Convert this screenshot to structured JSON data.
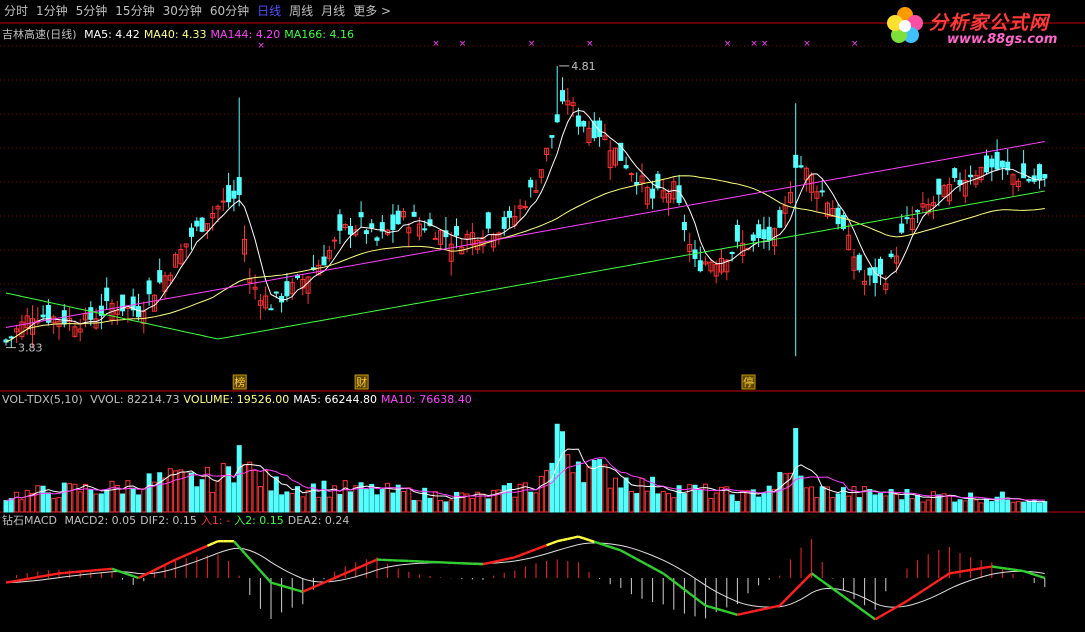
{
  "toolbar": {
    "tabs": [
      "分时",
      "1分钟",
      "5分钟",
      "15分钟",
      "30分钟",
      "60分钟",
      "日线",
      "周线",
      "月线",
      "更多 >"
    ],
    "active_index": 6
  },
  "logo": {
    "text": "分析家公式网",
    "url": "www.88gs.com"
  },
  "colors": {
    "up": "#ff3232",
    "down": "#54ffff",
    "ma5": "#ffffff",
    "ma40": "#ffff80",
    "ma144": "#ff40ff",
    "ma166": "#40ff40",
    "grid": "#7a0000",
    "axis": "#c00000",
    "macd_red": "#ff2020",
    "macd_yellow": "#ffff40",
    "macd_green": "#30d030"
  },
  "price_panel": {
    "title": "吉林高速(日线)",
    "indicators": [
      {
        "label": "MA5: 4.42",
        "color": "#ffffff"
      },
      {
        "label": "MA40: 4.33",
        "color": "#ffff80"
      },
      {
        "label": "MA144: 4.20",
        "color": "#ff40ff"
      },
      {
        "label": "MA166: 4.16",
        "color": "#40ff40"
      }
    ],
    "high_label": "4.81",
    "low_label": "3.83",
    "markers": [
      "榜",
      "财",
      "停"
    ]
  },
  "volume_panel": {
    "title": "VOL-TDX(5,10)",
    "indicators": [
      {
        "label": "VVOL: 82214.73",
        "color": "#c0c0c0"
      },
      {
        "label": "VOLUME: 19526.00",
        "color": "#ffff80"
      },
      {
        "label": "MA5: 66244.80",
        "color": "#ffffff"
      },
      {
        "label": "MA10: 76638.40",
        "color": "#ff40ff"
      }
    ]
  },
  "macd_panel": {
    "title": "钻石MACD",
    "indicators": [
      {
        "label": "MACD2: 0.05",
        "color": "#c0c0c0"
      },
      {
        "label": "DIF2: 0.15",
        "color": "#c0c0c0"
      },
      {
        "label": "入1: -",
        "color": "#ff3232"
      },
      {
        "label": "入2: 0.15",
        "color": "#40ff40"
      },
      {
        "label": "DEA2: 0.24",
        "color": "#c0c0c0"
      }
    ]
  },
  "chart_data": {
    "type": "candlestick",
    "ylim": [
      3.7,
      4.9
    ],
    "close_anchors": [
      [
        0,
        3.85
      ],
      [
        5,
        3.95
      ],
      [
        10,
        3.93
      ],
      [
        15,
        3.92
      ],
      [
        20,
        3.98
      ],
      [
        25,
        3.96
      ],
      [
        30,
        4.08
      ],
      [
        35,
        4.22
      ],
      [
        40,
        4.32
      ],
      [
        44,
        4.36
      ],
      [
        46,
        4.06
      ],
      [
        50,
        3.98
      ],
      [
        55,
        4.05
      ],
      [
        60,
        4.14
      ],
      [
        64,
        4.24
      ],
      [
        67,
        4.26
      ],
      [
        70,
        4.2
      ],
      [
        75,
        4.28
      ],
      [
        80,
        4.25
      ],
      [
        85,
        4.2
      ],
      [
        90,
        4.24
      ],
      [
        95,
        4.26
      ],
      [
        100,
        4.4
      ],
      [
        104,
        4.62
      ],
      [
        106,
        4.7
      ],
      [
        108,
        4.62
      ],
      [
        112,
        4.58
      ],
      [
        118,
        4.45
      ],
      [
        122,
        4.35
      ],
      [
        126,
        4.38
      ],
      [
        130,
        4.12
      ],
      [
        134,
        4.14
      ],
      [
        138,
        4.18
      ],
      [
        142,
        4.2
      ],
      [
        146,
        4.22
      ],
      [
        149,
        4.48
      ],
      [
        152,
        4.42
      ],
      [
        156,
        4.32
      ],
      [
        160,
        4.15
      ],
      [
        162,
        4.06
      ],
      [
        166,
        4.08
      ],
      [
        170,
        4.26
      ],
      [
        174,
        4.32
      ],
      [
        178,
        4.38
      ],
      [
        182,
        4.44
      ],
      [
        186,
        4.46
      ],
      [
        190,
        4.43
      ],
      [
        196,
        4.4
      ]
    ],
    "volume_anchors": [
      [
        0,
        0.15
      ],
      [
        10,
        0.2
      ],
      [
        20,
        0.22
      ],
      [
        30,
        0.3
      ],
      [
        40,
        0.3
      ],
      [
        44,
        0.45
      ],
      [
        50,
        0.25
      ],
      [
        60,
        0.22
      ],
      [
        70,
        0.2
      ],
      [
        80,
        0.16
      ],
      [
        90,
        0.14
      ],
      [
        100,
        0.25
      ],
      [
        104,
        0.5
      ],
      [
        106,
        0.6
      ],
      [
        110,
        0.4
      ],
      [
        120,
        0.25
      ],
      [
        130,
        0.2
      ],
      [
        140,
        0.15
      ],
      [
        149,
        0.35
      ],
      [
        151,
        0.2
      ],
      [
        160,
        0.18
      ],
      [
        170,
        0.16
      ],
      [
        180,
        0.14
      ],
      [
        196,
        0.13
      ]
    ],
    "spikes": [
      [
        44,
        0.62,
        "down"
      ],
      [
        104,
        0.82,
        "up"
      ],
      [
        105,
        0.75,
        "down"
      ],
      [
        149,
        0.78,
        "down"
      ]
    ],
    "dif_anchors": [
      [
        0,
        -0.02
      ],
      [
        10,
        0.02
      ],
      [
        20,
        0.04
      ],
      [
        25,
        0.0
      ],
      [
        32,
        0.08
      ],
      [
        40,
        0.16
      ],
      [
        43,
        0.16
      ],
      [
        50,
        -0.02
      ],
      [
        56,
        -0.06
      ],
      [
        62,
        0.0
      ],
      [
        70,
        0.08
      ],
      [
        80,
        0.07
      ],
      [
        90,
        0.06
      ],
      [
        96,
        0.09
      ],
      [
        104,
        0.16
      ],
      [
        108,
        0.18
      ],
      [
        116,
        0.12
      ],
      [
        124,
        0.02
      ],
      [
        132,
        -0.12
      ],
      [
        138,
        -0.16
      ],
      [
        146,
        -0.12
      ],
      [
        152,
        0.02
      ],
      [
        158,
        -0.08
      ],
      [
        164,
        -0.18
      ],
      [
        170,
        -0.1
      ],
      [
        178,
        0.02
      ],
      [
        186,
        0.05
      ],
      [
        192,
        0.03
      ],
      [
        196,
        0.0
      ]
    ]
  }
}
